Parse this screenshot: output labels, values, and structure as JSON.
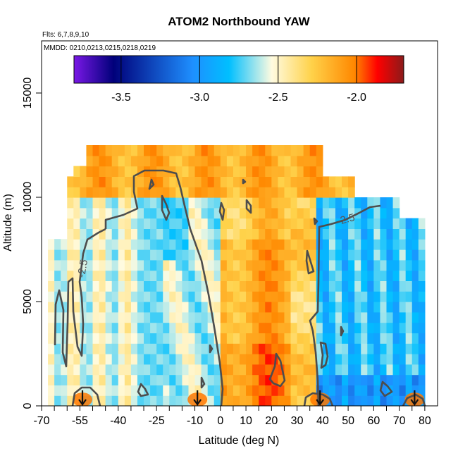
{
  "chart_data": {
    "type": "heatmap",
    "title": "ATOM2 Northbound YAW",
    "flights_note": "Flts: 6,7,8,9,10",
    "dates_note": "MMDD: 0210,0213,0215,0218,0219",
    "xlabel": "Latitude (deg N)",
    "ylabel": "Altitude (m)",
    "xlim": [
      -70,
      85
    ],
    "ylim": [
      0,
      17500
    ],
    "x_ticks": [
      -70,
      -55,
      -40,
      -25,
      -10,
      0,
      10,
      20,
      30,
      40,
      50,
      60,
      70,
      80
    ],
    "x_tick_labels": [
      "-70",
      "-55",
      "-40",
      "-25",
      "-10",
      "0",
      "10",
      "20",
      "30",
      "40",
      "50",
      "60",
      "70",
      "80"
    ],
    "y_ticks": [
      0,
      5000,
      10000,
      15000
    ],
    "y_tick_labels": [
      "0",
      "5000",
      "10000",
      "15000"
    ],
    "colorbar": {
      "range": [
        -3.8,
        -1.7
      ],
      "ticks": [
        -3.5,
        -3.0,
        -2.5,
        -2.0
      ],
      "tick_labels": [
        "-3.5",
        "-3.0",
        "-2.5",
        "-2.0"
      ],
      "colors": [
        "#7a18e6",
        "#00007a",
        "#1e8fff",
        "#00bfff",
        "#fffbe0",
        "#ffd24a",
        "#ff8800",
        "#ff0000",
        "#8b1a1a"
      ]
    },
    "contour_level": -2.5,
    "contour_labels": [
      "-2.5",
      "-2.5"
    ],
    "profile_markers_lat": [
      -54,
      -9,
      39,
      76
    ],
    "grid": false,
    "value_range_shown": [
      -3.3,
      -1.8
    ]
  }
}
